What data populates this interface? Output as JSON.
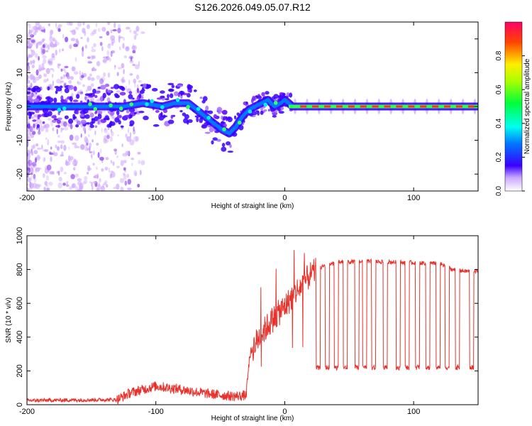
{
  "title": "S126.2026.049.05.07.R12",
  "chart_data": [
    {
      "type": "heatmap",
      "xlabel": "Height of straight line (km)",
      "ylabel": "Frequency (Hz)",
      "xlim": [
        -200,
        150
      ],
      "ylim": [
        -25,
        25
      ],
      "xticks": [
        -200,
        -100,
        0,
        100
      ],
      "yticks": [
        -20,
        -10,
        0,
        10,
        20
      ],
      "colorbar": {
        "label": "Normalized spectral amplitude",
        "range": [
          0,
          1
        ],
        "ticks": [
          "0.0",
          "0.2",
          "0.4",
          "0.6",
          "0.8"
        ]
      },
      "ridge": {
        "x": [
          -200,
          -180,
          -160,
          -140,
          -125,
          -110,
          -95,
          -85,
          -75,
          -65,
          -55,
          -48,
          -43,
          -38,
          -33,
          -28,
          -23,
          -18,
          -13,
          -8,
          -3,
          0,
          3,
          6,
          10,
          20,
          40,
          60,
          80,
          100,
          120,
          150
        ],
        "freq": [
          0,
          0,
          0,
          0,
          0,
          1,
          0,
          1,
          1,
          -2,
          -5,
          -7,
          -8,
          -6,
          -3,
          -1,
          0,
          1,
          2,
          0,
          1,
          2,
          1,
          0,
          0,
          0,
          0,
          0,
          0,
          0,
          0,
          0
        ]
      }
    },
    {
      "type": "line",
      "xlabel": "Height of straight line (km)",
      "ylabel": "SNR (10 * v/v)",
      "xlim": [
        -200,
        150
      ],
      "ylim": [
        0,
        1000
      ],
      "xticks": [
        -200,
        -100,
        0,
        100
      ],
      "yticks": [
        0,
        200,
        400,
        600,
        800,
        1000
      ],
      "color": "#e8312b",
      "baseline": {
        "x": [
          -200,
          -130,
          -120,
          -100,
          -80,
          -60,
          -40,
          -30,
          -27,
          -20,
          -10,
          0,
          10,
          20,
          30,
          40,
          60,
          80,
          100,
          120,
          130,
          140,
          150
        ],
        "y": [
          25,
          30,
          70,
          110,
          90,
          65,
          50,
          55,
          300,
          400,
          500,
          580,
          680,
          770,
          820,
          840,
          850,
          845,
          840,
          835,
          800,
          790,
          790
        ]
      },
      "dips": {
        "x": [
          26,
          33,
          40,
          47,
          56,
          62,
          69,
          78,
          88,
          95,
          103,
          111,
          119,
          126,
          134,
          145
        ],
        "y": [
          220,
          220,
          220,
          220,
          220,
          220,
          220,
          220,
          220,
          220,
          220,
          220,
          220,
          220,
          220,
          220
        ]
      }
    }
  ]
}
